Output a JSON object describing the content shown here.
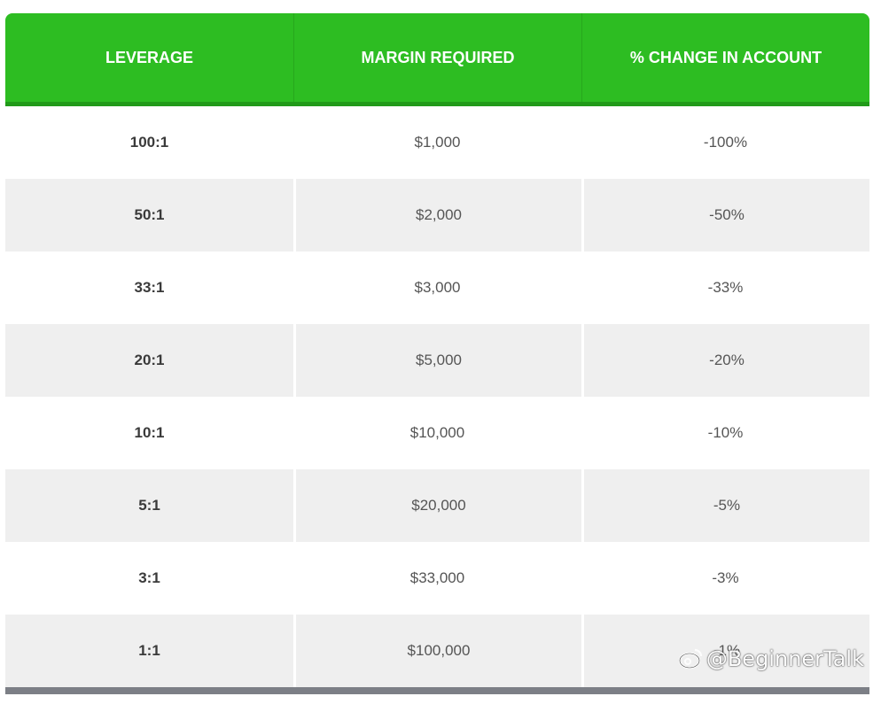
{
  "table": {
    "headers": [
      "LEVERAGE",
      "MARGIN REQUIRED",
      "% CHANGE IN ACCOUNT"
    ],
    "rows": [
      [
        "100:1",
        "$1,000",
        "-100%"
      ],
      [
        "50:1",
        "$2,000",
        "-50%"
      ],
      [
        "33:1",
        "$3,000",
        "-33%"
      ],
      [
        "20:1",
        "$5,000",
        "-20%"
      ],
      [
        "10:1",
        "$10,000",
        "-10%"
      ],
      [
        "5:1",
        "$20,000",
        "-5%"
      ],
      [
        "3:1",
        "$33,000",
        "-3%"
      ],
      [
        "1:1",
        "$100,000",
        "-1%"
      ]
    ]
  },
  "watermark": {
    "text": "@BeginnerTalk",
    "icon": "weibo-icon"
  },
  "colors": {
    "header_bg": "#2dbd22",
    "header_border": "#219a19",
    "row_alt_bg": "#efefef",
    "footer_bar": "#7c7f86"
  }
}
